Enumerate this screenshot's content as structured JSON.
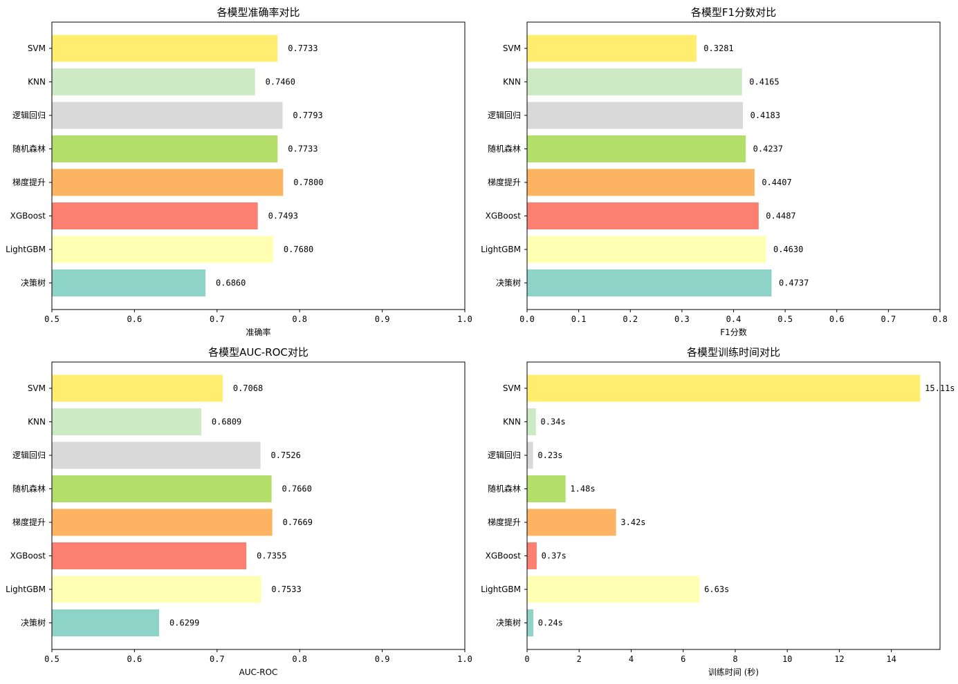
{
  "chart_data": [
    {
      "type": "bar",
      "orientation": "horizontal",
      "title": "各模型准确率对比",
      "xlabel": "准确率",
      "ylabel": "",
      "xlim": [
        0.5,
        1.0
      ],
      "xticks": [
        "0.5",
        "0.6",
        "0.7",
        "0.8",
        "0.9",
        "1.0"
      ],
      "categories": [
        "SVM",
        "KNN",
        "逻辑回归",
        "随机森林",
        "梯度提升",
        "XGBoost",
        "LightGBM",
        "决策树"
      ],
      "values": [
        0.7733,
        0.746,
        0.7793,
        0.7733,
        0.78,
        0.7493,
        0.768,
        0.686
      ],
      "labels": [
        "0.7733",
        "0.7460",
        "0.7793",
        "0.7733",
        "0.7800",
        "0.7493",
        "0.7680",
        "0.6860"
      ],
      "label_offset": 0.01
    },
    {
      "type": "bar",
      "orientation": "horizontal",
      "title": "各模型F1分数对比",
      "xlabel": "F1分数",
      "ylabel": "",
      "xlim": [
        0.0,
        0.8
      ],
      "xticks": [
        "0.0",
        "0.1",
        "0.2",
        "0.3",
        "0.4",
        "0.5",
        "0.6",
        "0.7",
        "0.8"
      ],
      "categories": [
        "SVM",
        "KNN",
        "逻辑回归",
        "随机森林",
        "梯度提升",
        "XGBoost",
        "LightGBM",
        "决策树"
      ],
      "values": [
        0.3281,
        0.4165,
        0.4183,
        0.4237,
        0.4407,
        0.4487,
        0.463,
        0.4737
      ],
      "labels": [
        "0.3281",
        "0.4165",
        "0.4183",
        "0.4237",
        "0.4407",
        "0.4487",
        "0.4630",
        "0.4737"
      ],
      "label_offset": 0.01
    },
    {
      "type": "bar",
      "orientation": "horizontal",
      "title": "各模型AUC-ROC对比",
      "xlabel": "AUC-ROC",
      "ylabel": "",
      "xlim": [
        0.5,
        1.0
      ],
      "xticks": [
        "0.5",
        "0.6",
        "0.7",
        "0.8",
        "0.9",
        "1.0"
      ],
      "categories": [
        "SVM",
        "KNN",
        "逻辑回归",
        "随机森林",
        "梯度提升",
        "XGBoost",
        "LightGBM",
        "决策树"
      ],
      "values": [
        0.7068,
        0.6809,
        0.7526,
        0.766,
        0.7669,
        0.7355,
        0.7533,
        0.6299
      ],
      "labels": [
        "0.7068",
        "0.6809",
        "0.7526",
        "0.7660",
        "0.7669",
        "0.7355",
        "0.7533",
        "0.6299"
      ],
      "label_offset": 0.01
    },
    {
      "type": "bar",
      "orientation": "horizontal",
      "title": "各模型训练时间对比",
      "xlabel": "训练时间 (秒)",
      "ylabel": "",
      "xlim": [
        0,
        15.87
      ],
      "xticks": [
        "0",
        "2",
        "4",
        "6",
        "8",
        "10",
        "12",
        "14"
      ],
      "xtick_values": [
        0,
        2,
        4,
        6,
        8,
        10,
        12,
        14
      ],
      "categories": [
        "SVM",
        "KNN",
        "逻辑回归",
        "随机森林",
        "梯度提升",
        "XGBoost",
        "LightGBM",
        "决策树"
      ],
      "values": [
        15.11,
        0.34,
        0.23,
        1.48,
        3.42,
        0.37,
        6.63,
        0.24
      ],
      "labels": [
        "15.11s",
        "0.34s",
        "0.23s",
        "1.48s",
        "3.42s",
        "0.37s",
        "6.63s",
        "0.24s"
      ],
      "label_offset": 0.1
    }
  ],
  "bar_colors": [
    "#ffed6f",
    "#ccebc5",
    "#d9d9d9",
    "#b3de69",
    "#fdb462",
    "#fb8072",
    "#ffffb3",
    "#8dd3c7"
  ]
}
